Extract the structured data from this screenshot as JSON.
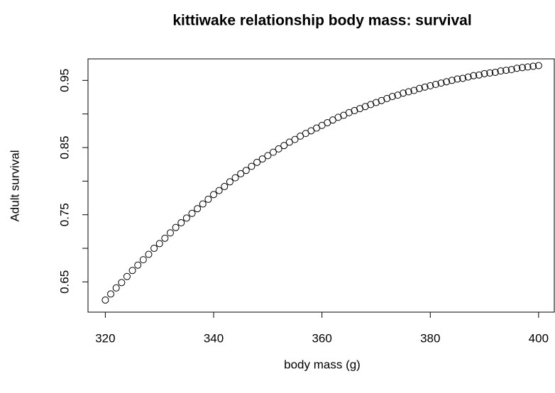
{
  "chart_data": {
    "type": "scatter",
    "title": "kittiwake relationship body mass: survival",
    "x_label": "body mass (g)",
    "y_label": "Adult survival",
    "x": [
      320,
      321,
      322,
      323,
      324,
      325,
      326,
      327,
      328,
      329,
      330,
      331,
      332,
      333,
      334,
      335,
      336,
      337,
      338,
      339,
      340,
      341,
      342,
      343,
      344,
      345,
      346,
      347,
      348,
      349,
      350,
      351,
      352,
      353,
      354,
      355,
      356,
      357,
      358,
      359,
      360,
      361,
      362,
      363,
      364,
      365,
      366,
      367,
      368,
      369,
      370,
      371,
      372,
      373,
      374,
      375,
      376,
      377,
      378,
      379,
      380,
      381,
      382,
      383,
      384,
      385,
      386,
      387,
      388,
      389,
      390,
      391,
      392,
      393,
      394,
      395,
      396,
      397,
      398,
      399,
      400
    ],
    "values": [
      0.623,
      0.632,
      0.641,
      0.649,
      0.658,
      0.667,
      0.675,
      0.683,
      0.691,
      0.7,
      0.707,
      0.715,
      0.723,
      0.731,
      0.738,
      0.745,
      0.752,
      0.759,
      0.766,
      0.773,
      0.78,
      0.786,
      0.792,
      0.799,
      0.805,
      0.811,
      0.816,
      0.822,
      0.828,
      0.833,
      0.838,
      0.843,
      0.848,
      0.853,
      0.858,
      0.862,
      0.867,
      0.871,
      0.875,
      0.879,
      0.883,
      0.887,
      0.891,
      0.895,
      0.898,
      0.902,
      0.905,
      0.908,
      0.911,
      0.914,
      0.917,
      0.92,
      0.923,
      0.926,
      0.928,
      0.931,
      0.933,
      0.935,
      0.938,
      0.94,
      0.942,
      0.944,
      0.946,
      0.948,
      0.95,
      0.952,
      0.953,
      0.955,
      0.957,
      0.958,
      0.96,
      0.961,
      0.962,
      0.964,
      0.965,
      0.966,
      0.968,
      0.969,
      0.97,
      0.971,
      0.972
    ],
    "color": "#000000",
    "xlim": [
      316.8,
      402.9
    ],
    "xticks": [
      320,
      340,
      360,
      380,
      400
    ],
    "ylim": [
      0.605,
      0.982
    ],
    "yticks": [
      0.65,
      0.75,
      0.85,
      0.95
    ],
    "yticks_unlabeled": [
      0.7,
      0.8,
      0.9
    ]
  }
}
